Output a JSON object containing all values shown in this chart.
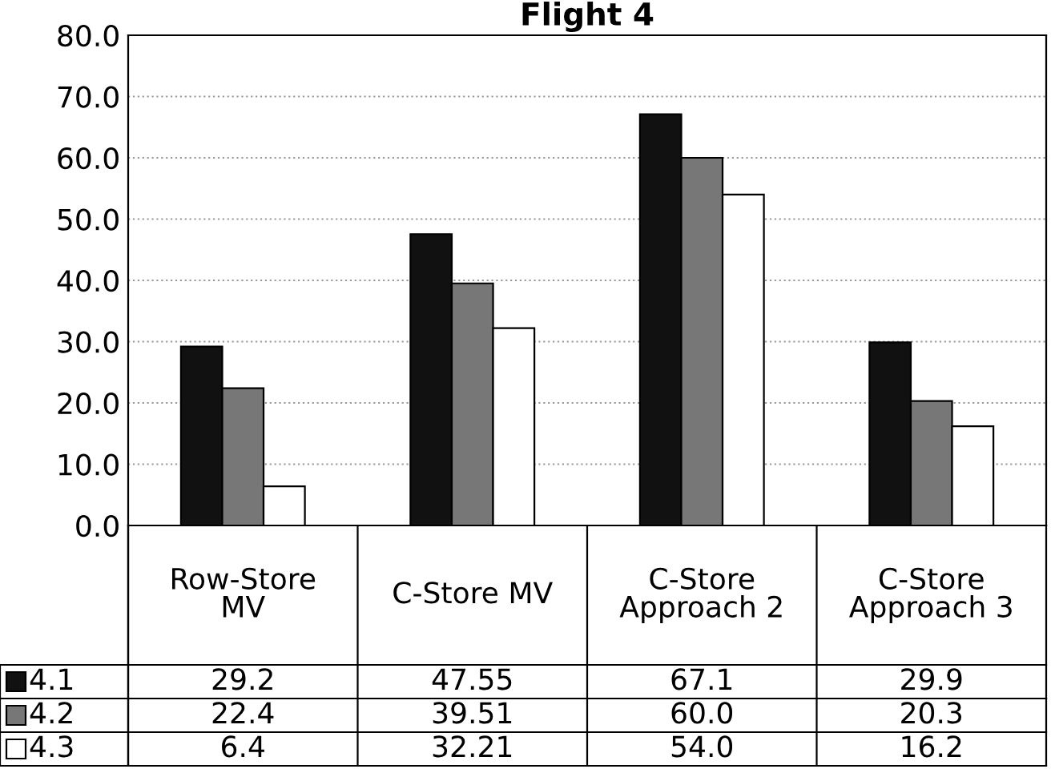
{
  "chart_data": {
    "type": "bar",
    "title": "Flight 4",
    "categories": [
      "Row-Store\nMV",
      "C-Store MV",
      "C-Store\nApproach 2",
      "C-Store\nApproach 3"
    ],
    "series": [
      {
        "name": "4.1",
        "color": "#111111",
        "values": [
          29.2,
          47.55,
          67.1,
          29.9
        ],
        "value_labels": [
          "29.2",
          "47.55",
          "67.1",
          "29.9"
        ]
      },
      {
        "name": "4.2",
        "color": "#777777",
        "values": [
          22.4,
          39.51,
          60.0,
          20.3
        ],
        "value_labels": [
          "22.4",
          "39.51",
          "60.0",
          "20.3"
        ]
      },
      {
        "name": "4.3",
        "color": "#ffffff",
        "values": [
          6.4,
          32.21,
          54.0,
          16.2
        ],
        "value_labels": [
          "6.4",
          "32.21",
          "54.0",
          "16.2"
        ]
      }
    ],
    "ylim": [
      0,
      80
    ],
    "yticks": [
      {
        "value": 0,
        "label": "0.0"
      },
      {
        "value": 10,
        "label": "10.0"
      },
      {
        "value": 20,
        "label": "20.0"
      },
      {
        "value": 30,
        "label": "30.0"
      },
      {
        "value": 40,
        "label": "40.0"
      },
      {
        "value": 50,
        "label": "50.0"
      },
      {
        "value": 60,
        "label": "60.0"
      },
      {
        "value": 70,
        "label": "70.0"
      },
      {
        "value": 80,
        "label": "80.0"
      }
    ],
    "grid": "y",
    "legend": "bottom left"
  }
}
